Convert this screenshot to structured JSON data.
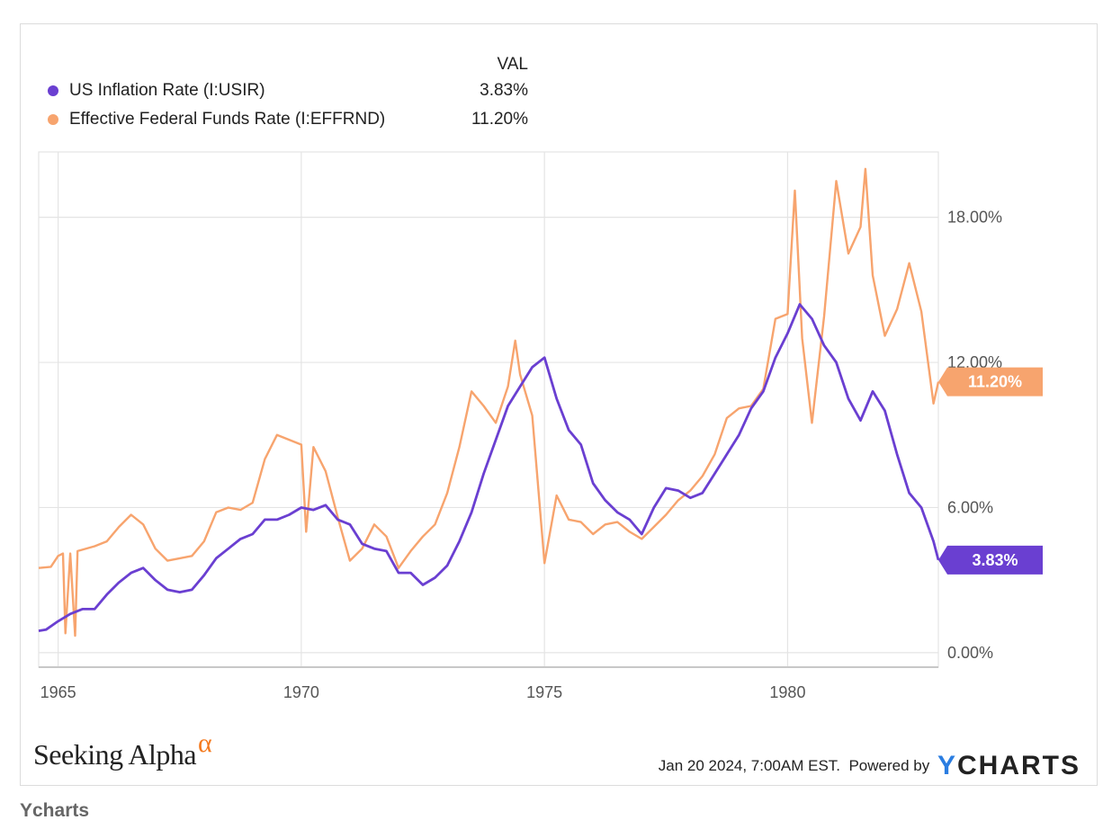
{
  "legend": {
    "value_header": "VAL",
    "items": [
      {
        "label": "US Inflation Rate (I:USIR)",
        "value": "3.83%"
      },
      {
        "label": "Effective Federal Funds Rate (I:EFFRND)",
        "value": "11.20%"
      }
    ]
  },
  "badges": {
    "inflation": "3.83%",
    "fed_funds": "11.20%"
  },
  "footer": {
    "timestamp": "Jan 20 2024, 7:00AM EST.",
    "powered_by": "Powered by",
    "brand_y": "Y",
    "brand_rest": "CHARTS"
  },
  "logo": {
    "text": "Seeking Alpha",
    "alpha": "α"
  },
  "caption": "Ycharts",
  "colors": {
    "inflation": "#6a3fd1",
    "fed_funds": "#f7a46e",
    "grid": "#e4e4e4",
    "axis": "#c8c8c8"
  },
  "chart_data": {
    "type": "line",
    "title": "",
    "xlabel": "",
    "ylabel": "",
    "xlim": [
      1964.6,
      1982.9
    ],
    "ylim": [
      0,
      18
    ],
    "x_ticks": [
      1965,
      1970,
      1975,
      1980
    ],
    "x_tick_labels": [
      "1965",
      "1970",
      "1975",
      "1980"
    ],
    "y_ticks": [
      0,
      6,
      12,
      18
    ],
    "y_tick_labels": [
      "0.00%",
      "6.00%",
      "12.00%",
      "18.00%"
    ],
    "grid": true,
    "legend_position": "top-left",
    "series": [
      {
        "name": "US Inflation Rate (I:USIR)",
        "points": [
          [
            1964.6,
            0.9
          ],
          [
            1964.75,
            0.95
          ],
          [
            1965.0,
            1.3
          ],
          [
            1965.25,
            1.6
          ],
          [
            1965.5,
            1.8
          ],
          [
            1965.75,
            1.8
          ],
          [
            1966.0,
            2.4
          ],
          [
            1966.25,
            2.9
          ],
          [
            1966.5,
            3.3
          ],
          [
            1966.75,
            3.5
          ],
          [
            1967.0,
            3.0
          ],
          [
            1967.25,
            2.6
          ],
          [
            1967.5,
            2.5
          ],
          [
            1967.75,
            2.6
          ],
          [
            1968.0,
            3.2
          ],
          [
            1968.25,
            3.9
          ],
          [
            1968.5,
            4.3
          ],
          [
            1968.75,
            4.7
          ],
          [
            1969.0,
            4.9
          ],
          [
            1969.25,
            5.5
          ],
          [
            1969.5,
            5.5
          ],
          [
            1969.75,
            5.7
          ],
          [
            1970.0,
            6.0
          ],
          [
            1970.25,
            5.9
          ],
          [
            1970.5,
            6.1
          ],
          [
            1970.75,
            5.5
          ],
          [
            1971.0,
            5.3
          ],
          [
            1971.25,
            4.5
          ],
          [
            1971.5,
            4.3
          ],
          [
            1971.75,
            4.2
          ],
          [
            1972.0,
            3.3
          ],
          [
            1972.25,
            3.3
          ],
          [
            1972.5,
            2.8
          ],
          [
            1972.75,
            3.1
          ],
          [
            1973.0,
            3.6
          ],
          [
            1973.25,
            4.6
          ],
          [
            1973.5,
            5.8
          ],
          [
            1973.75,
            7.4
          ],
          [
            1974.0,
            8.8
          ],
          [
            1974.25,
            10.2
          ],
          [
            1974.5,
            11.0
          ],
          [
            1974.75,
            11.8
          ],
          [
            1975.0,
            12.2
          ],
          [
            1975.25,
            10.5
          ],
          [
            1975.5,
            9.2
          ],
          [
            1975.75,
            8.6
          ],
          [
            1976.0,
            7.0
          ],
          [
            1976.25,
            6.3
          ],
          [
            1976.5,
            5.8
          ],
          [
            1976.75,
            5.5
          ],
          [
            1977.0,
            4.9
          ],
          [
            1977.25,
            6.0
          ],
          [
            1977.5,
            6.8
          ],
          [
            1977.75,
            6.7
          ],
          [
            1978.0,
            6.4
          ],
          [
            1978.25,
            6.6
          ],
          [
            1978.5,
            7.4
          ],
          [
            1978.75,
            8.2
          ],
          [
            1979.0,
            9.0
          ],
          [
            1979.25,
            10.1
          ],
          [
            1979.5,
            10.8
          ],
          [
            1979.75,
            12.2
          ],
          [
            1980.0,
            13.2
          ],
          [
            1980.25,
            14.4
          ],
          [
            1980.5,
            13.8
          ],
          [
            1980.75,
            12.7
          ],
          [
            1981.0,
            12.0
          ],
          [
            1981.25,
            10.5
          ],
          [
            1981.5,
            9.6
          ],
          [
            1981.75,
            10.8
          ],
          [
            1982.0,
            10.0
          ],
          [
            1982.25,
            8.2
          ],
          [
            1982.5,
            6.6
          ],
          [
            1982.75,
            6.0
          ],
          [
            1983.0,
            4.6
          ],
          [
            1983.1,
            3.83
          ]
        ]
      },
      {
        "name": "Effective Federal Funds Rate (I:EFFRND)",
        "points": [
          [
            1964.6,
            3.5
          ],
          [
            1964.85,
            3.55
          ],
          [
            1965.0,
            4.0
          ],
          [
            1965.1,
            4.1
          ],
          [
            1965.15,
            0.8
          ],
          [
            1965.25,
            4.1
          ],
          [
            1965.35,
            0.7
          ],
          [
            1965.4,
            4.2
          ],
          [
            1965.75,
            4.4
          ],
          [
            1966.0,
            4.6
          ],
          [
            1966.25,
            5.2
          ],
          [
            1966.5,
            5.7
          ],
          [
            1966.75,
            5.3
          ],
          [
            1967.0,
            4.3
          ],
          [
            1967.25,
            3.8
          ],
          [
            1967.5,
            3.9
          ],
          [
            1967.75,
            4.0
          ],
          [
            1968.0,
            4.6
          ],
          [
            1968.25,
            5.8
          ],
          [
            1968.5,
            6.0
          ],
          [
            1968.75,
            5.9
          ],
          [
            1969.0,
            6.2
          ],
          [
            1969.25,
            8.0
          ],
          [
            1969.5,
            9.0
          ],
          [
            1969.75,
            8.8
          ],
          [
            1970.0,
            8.6
          ],
          [
            1970.1,
            5.0
          ],
          [
            1970.25,
            8.5
          ],
          [
            1970.5,
            7.5
          ],
          [
            1970.75,
            5.6
          ],
          [
            1971.0,
            3.8
          ],
          [
            1971.25,
            4.3
          ],
          [
            1971.5,
            5.3
          ],
          [
            1971.75,
            4.8
          ],
          [
            1972.0,
            3.5
          ],
          [
            1972.25,
            4.2
          ],
          [
            1972.5,
            4.8
          ],
          [
            1972.75,
            5.3
          ],
          [
            1973.0,
            6.6
          ],
          [
            1973.25,
            8.5
          ],
          [
            1973.5,
            10.8
          ],
          [
            1973.75,
            10.2
          ],
          [
            1974.0,
            9.5
          ],
          [
            1974.25,
            11.0
          ],
          [
            1974.4,
            12.9
          ],
          [
            1974.5,
            11.5
          ],
          [
            1974.75,
            9.8
          ],
          [
            1975.0,
            3.7
          ],
          [
            1975.25,
            6.5
          ],
          [
            1975.5,
            5.5
          ],
          [
            1975.75,
            5.4
          ],
          [
            1976.0,
            4.9
          ],
          [
            1976.25,
            5.3
          ],
          [
            1976.5,
            5.4
          ],
          [
            1976.75,
            5.0
          ],
          [
            1977.0,
            4.7
          ],
          [
            1977.25,
            5.2
          ],
          [
            1977.5,
            5.7
          ],
          [
            1977.75,
            6.3
          ],
          [
            1978.0,
            6.7
          ],
          [
            1978.25,
            7.3
          ],
          [
            1978.5,
            8.2
          ],
          [
            1978.75,
            9.7
          ],
          [
            1979.0,
            10.1
          ],
          [
            1979.25,
            10.2
          ],
          [
            1979.5,
            10.9
          ],
          [
            1979.75,
            13.8
          ],
          [
            1980.0,
            14.0
          ],
          [
            1980.15,
            19.1
          ],
          [
            1980.3,
            13.0
          ],
          [
            1980.5,
            9.5
          ],
          [
            1980.75,
            13.9
          ],
          [
            1981.0,
            19.5
          ],
          [
            1981.25,
            16.5
          ],
          [
            1981.5,
            17.6
          ],
          [
            1981.6,
            20.0
          ],
          [
            1981.75,
            15.6
          ],
          [
            1982.0,
            13.1
          ],
          [
            1982.25,
            14.2
          ],
          [
            1982.5,
            16.1
          ],
          [
            1982.75,
            14.1
          ],
          [
            1983.0,
            10.3
          ],
          [
            1983.1,
            11.2
          ]
        ]
      }
    ]
  }
}
